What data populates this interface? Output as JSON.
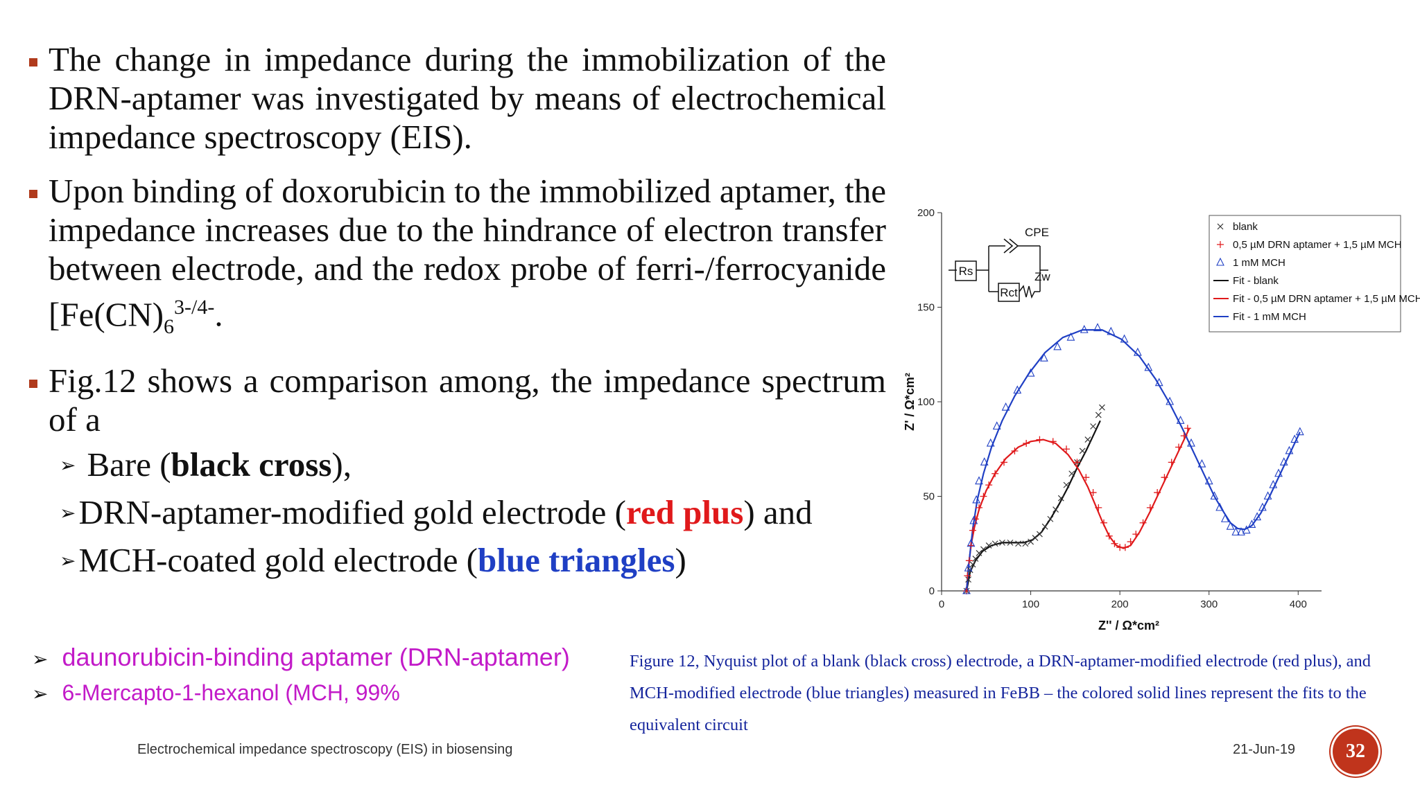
{
  "bullets": [
    {
      "text": "The change in impedance during the immobilization of the DRN-aptamer was investigated by means of electrochemical impedance spectroscopy (EIS)."
    },
    {
      "text_pre": "Upon binding of doxorubicin to the immobilized aptamer, the impedance increases due to the hindrance of electron transfer between electrode, and the redox probe of ferri-/ferrocyanide [Fe(CN)",
      "sub": "6",
      "sup": "3-/4-",
      "text_post": "."
    },
    {
      "text": "Fig.12 shows a comparison among, the impedance spectrum of a"
    }
  ],
  "subitems": [
    {
      "pre": "Bare (",
      "highlight": "black cross",
      "post": "),"
    },
    {
      "pre": "DRN-aptamer-modified gold electrode (",
      "highlight": "red plus",
      "post": ") and"
    },
    {
      "pre": "MCH-coated gold electrode (",
      "highlight": "blue triangles",
      "post": ")"
    }
  ],
  "definitions": [
    "daunorubicin-binding aptamer (DRN-aptamer)",
    "6-Mercapto-1-hexanol (MCH, 99%"
  ],
  "caption": "Figure 12,   Nyquist plot of a blank (black cross) electrode, a DRN-aptamer-modified electrode (red plus), and MCH-modified electrode (blue triangles) measured in FeBB – the colored solid lines represent the fits to the equivalent circuit",
  "footer": {
    "title": "Electrochemical impedance spectroscopy (EIS) in biosensing",
    "date": "21-Jun-19",
    "page": "32"
  },
  "circuit": {
    "rs": "Rs",
    "cpe": "CPE",
    "rct": "Rct",
    "zw": "Zw"
  },
  "colors": {
    "bullet": "#b03a1c",
    "red": "#e0191b",
    "blue": "#1f3fc4",
    "magenta": "#c21ac8",
    "caption": "#14249c"
  },
  "chart_data": {
    "type": "scatter",
    "xlabel": "Z'' / Ω*cm²",
    "ylabel": "Z' / Ω*cm²",
    "xlim": [
      0,
      420
    ],
    "ylim": [
      0,
      200
    ],
    "xticks": [
      0,
      100,
      200,
      300,
      400
    ],
    "yticks": [
      0,
      50,
      100,
      150,
      200
    ],
    "legend_position": "top-right",
    "legend": [
      "blank",
      "0,5 µM DRN aptamer + 1,5 µM MCH",
      "1 mM MCH",
      "Fit - blank",
      "Fit - 0,5 µM DRN aptamer + 1,5 µM MCH",
      "Fit - 1 mM MCH"
    ],
    "series": [
      {
        "name": "blank",
        "marker": "x",
        "color": "#333333",
        "x": [
          28,
          30,
          32,
          35,
          38,
          42,
          47,
          53,
          60,
          68,
          77,
          86,
          94,
          100,
          105,
          110,
          116,
          122,
          128,
          134,
          140,
          146,
          152,
          158,
          164,
          170,
          176,
          180
        ],
        "y": [
          0,
          6,
          11,
          14,
          17,
          20,
          22,
          24,
          25,
          25.5,
          25.5,
          25,
          25,
          26,
          28,
          30,
          34,
          38,
          43,
          49,
          56,
          62,
          68,
          74,
          80,
          87,
          93,
          97
        ]
      },
      {
        "name": "0,5 µM DRN aptamer + 1,5 µM MCH",
        "marker": "+",
        "color": "#e0191b",
        "x": [
          28,
          29,
          31,
          33,
          35,
          38,
          42,
          47,
          53,
          60,
          70,
          82,
          95,
          110,
          125,
          140,
          152,
          162,
          170,
          176,
          182,
          188,
          194,
          200,
          206,
          212,
          218,
          226,
          234,
          242,
          250,
          258,
          266,
          272,
          276
        ],
        "y": [
          0,
          8,
          16,
          24,
          32,
          38,
          44,
          50,
          56,
          62,
          68,
          74,
          78,
          80,
          79,
          75,
          68,
          60,
          52,
          44,
          36,
          29,
          25,
          23,
          23,
          26,
          30,
          36,
          44,
          52,
          60,
          68,
          76,
          82,
          86
        ]
      },
      {
        "name": "1 mM MCH",
        "marker": "triangle",
        "color": "#1f3fc4",
        "x": [
          28,
          30,
          33,
          36,
          39,
          42,
          48,
          55,
          62,
          72,
          85,
          100,
          115,
          130,
          145,
          160,
          175,
          190,
          205,
          220,
          232,
          244,
          256,
          268,
          280,
          292,
          300,
          306,
          312,
          318,
          324,
          330,
          336,
          342,
          348,
          354,
          360,
          366,
          372,
          378,
          384,
          390,
          396,
          402
        ],
        "y": [
          0,
          12,
          25,
          37,
          48,
          58,
          68,
          78,
          87,
          97,
          106,
          115,
          123,
          129,
          134,
          138,
          139,
          137,
          133,
          126,
          118,
          110,
          100,
          90,
          78,
          67,
          58,
          50,
          44,
          38,
          34,
          31,
          31,
          32,
          35,
          39,
          44,
          50,
          56,
          62,
          68,
          74,
          80,
          84
        ]
      },
      {
        "name": "Fit - blank",
        "line": true,
        "color": "#111111",
        "x": [
          28,
          32,
          38,
          46,
          56,
          68,
          80,
          92,
          102,
          112,
          122,
          132,
          142,
          152,
          162,
          172,
          178
        ],
        "y": [
          0,
          10,
          16,
          21,
          24,
          25.5,
          25.5,
          25.5,
          27,
          31,
          38,
          46,
          55,
          65,
          74,
          84,
          90
        ]
      },
      {
        "name": "Fit - 0,5 µM DRN aptamer + 1,5 µM MCH",
        "line": true,
        "color": "#e0191b",
        "x": [
          28,
          30,
          33,
          37,
          42,
          50,
          60,
          72,
          86,
          100,
          114,
          128,
          142,
          154,
          164,
          172,
          180,
          188,
          196,
          204,
          212,
          222,
          234,
          246,
          258,
          270,
          278
        ],
        "y": [
          0,
          12,
          24,
          34,
          43,
          53,
          62,
          70,
          76,
          79,
          80,
          78,
          72,
          64,
          55,
          46,
          37,
          29,
          24,
          22.5,
          24,
          31,
          42,
          54,
          66,
          78,
          86
        ]
      },
      {
        "name": "Fit - 1 mM MCH",
        "line": true,
        "color": "#1f3fc4",
        "x": [
          28,
          31,
          35,
          40,
          47,
          56,
          68,
          82,
          98,
          116,
          136,
          158,
          180,
          202,
          222,
          240,
          256,
          270,
          284,
          296,
          306,
          316,
          324,
          332,
          340,
          348,
          358,
          368,
          380,
          392,
          402
        ],
        "y": [
          0,
          16,
          33,
          48,
          62,
          76,
          90,
          103,
          115,
          126,
          134,
          138,
          138,
          133,
          124,
          112,
          99,
          86,
          72,
          60,
          50,
          42,
          36,
          33,
          32.5,
          34.5,
          41,
          50,
          62,
          74,
          84
        ]
      }
    ]
  }
}
